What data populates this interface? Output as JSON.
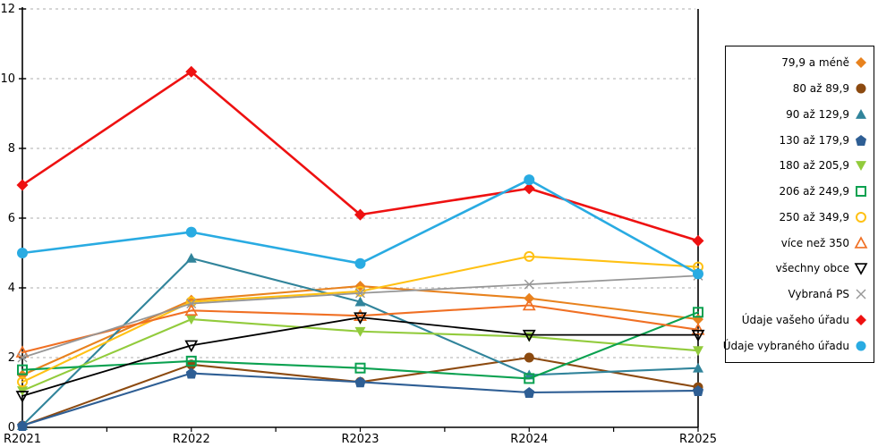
{
  "chart_data": {
    "type": "line",
    "title": "",
    "xlabel": "",
    "ylabel": "",
    "categories": [
      "R2021",
      "R2022",
      "R2023",
      "R2024",
      "R2025"
    ],
    "ylim": [
      0,
      12
    ],
    "y_ticks": [
      0,
      2,
      4,
      6,
      8,
      10,
      12
    ],
    "grid": "horizontal-dashed",
    "gridline_color": "#BEBEBE",
    "axis_color": "#000000",
    "legend_position": "right",
    "series": [
      {
        "name": "79,9 a méně",
        "marker": "diamond",
        "fill": "solid",
        "color": "#E8821E",
        "values": [
          1.5,
          3.65,
          4.05,
          3.7,
          3.1
        ]
      },
      {
        "name": "80 až 89,9",
        "marker": "circle",
        "fill": "solid",
        "color": "#8C4A10",
        "values": [
          0.05,
          1.8,
          1.3,
          2.0,
          1.15
        ]
      },
      {
        "name": "90 až 129,9",
        "marker": "triangle-up",
        "fill": "solid",
        "color": "#31849B",
        "values": [
          0.05,
          4.85,
          3.6,
          1.5,
          1.7
        ]
      },
      {
        "name": "130 až 179,9",
        "marker": "pentagon",
        "fill": "solid",
        "color": "#2E5E94",
        "values": [
          0.05,
          1.55,
          1.3,
          1.0,
          1.05
        ]
      },
      {
        "name": "180 až 205,9",
        "marker": "triangle-down",
        "fill": "solid",
        "color": "#92CB3C",
        "values": [
          1.05,
          3.1,
          2.75,
          2.6,
          2.2
        ]
      },
      {
        "name": "206 až 249,9",
        "marker": "square",
        "fill": "open",
        "color": "#0AA150",
        "values": [
          1.65,
          1.9,
          1.7,
          1.4,
          3.3
        ]
      },
      {
        "name": "250 až 349,9",
        "marker": "circle",
        "fill": "open",
        "color": "#FFC114",
        "values": [
          1.3,
          3.6,
          3.9,
          4.9,
          4.6
        ]
      },
      {
        "name": "více než 350",
        "marker": "triangle-up",
        "fill": "open",
        "color": "#F07024",
        "values": [
          2.15,
          3.35,
          3.2,
          3.5,
          2.8
        ]
      },
      {
        "name": "všechny obce",
        "marker": "triangle-down",
        "fill": "open",
        "color": "#000000",
        "values": [
          0.9,
          2.35,
          3.15,
          2.65,
          2.65
        ]
      },
      {
        "name": "Vybraná PS",
        "marker": "x",
        "fill": "open",
        "color": "#969696",
        "values": [
          2.0,
          3.55,
          3.85,
          4.1,
          4.35
        ]
      },
      {
        "name": "Údaje vašeho úřadu",
        "marker": "diamond",
        "fill": "solid",
        "color": "#EE1111",
        "values": [
          6.95,
          10.2,
          6.1,
          6.85,
          5.35
        ]
      },
      {
        "name": "Údaje vybraného úřadu",
        "marker": "circle",
        "fill": "solid",
        "color": "#29ABE2",
        "values": [
          5.0,
          5.6,
          4.7,
          7.1,
          4.4
        ]
      }
    ]
  },
  "layout_note": ""
}
